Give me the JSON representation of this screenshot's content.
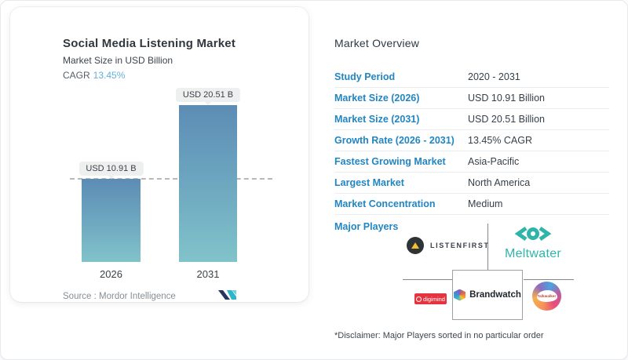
{
  "chart_data": {
    "type": "bar",
    "title": "Social Media Listening Market",
    "subtitle": "Market Size in USD Billion",
    "cagr_label": "CAGR",
    "cagr_value": "13.45%",
    "categories": [
      "2026",
      "2031"
    ],
    "values": [
      10.91,
      20.51
    ],
    "value_labels": [
      "USD 10.91 B",
      "USD 20.51 B"
    ],
    "ylabel": "Market Size in USD Billion",
    "reference_line": {
      "at_value": 10.91,
      "style": "dashed"
    },
    "legend": "none",
    "source_label": "Source :",
    "source_value": "Mordor Intelligence"
  },
  "overview": {
    "title": "Market Overview",
    "rows": [
      {
        "label": "Study Period",
        "value": "2020 - 2031"
      },
      {
        "label": "Market Size (2026)",
        "value": "USD 10.91 Billion"
      },
      {
        "label": "Market Size (2031)",
        "value": "USD 20.51 Billion"
      },
      {
        "label": "Growth Rate (2026 - 2031)",
        "value": "13.45% CAGR"
      },
      {
        "label": "Fastest Growing Market",
        "value": "Asia-Pacific"
      },
      {
        "label": "Largest Market",
        "value": "North America"
      },
      {
        "label": "Market Concentration",
        "value": "Medium"
      }
    ],
    "major_players_label": "Major Players",
    "players": [
      {
        "name": "ListenFirst",
        "display": "LISTENFIRST"
      },
      {
        "name": "Meltwater",
        "display": "Meltwater"
      },
      {
        "name": "Digimind",
        "display": "digimind"
      },
      {
        "name": "Brandwatch",
        "display": "Brandwatch"
      },
      {
        "name": "Talkwalker",
        "display": "Talkwalker"
      }
    ],
    "disclaimer": "*Disclaimer: Major Players sorted in no particular order"
  },
  "colors": {
    "accent_blue": "#2186c2",
    "cagr_blue": "#64afd6",
    "bar_top": "#5d8cb4",
    "bar_bottom": "#81c3ca",
    "meltwater_teal": "#2fb4aa",
    "digimind_red": "#e53440",
    "text_dark": "#353f49"
  }
}
